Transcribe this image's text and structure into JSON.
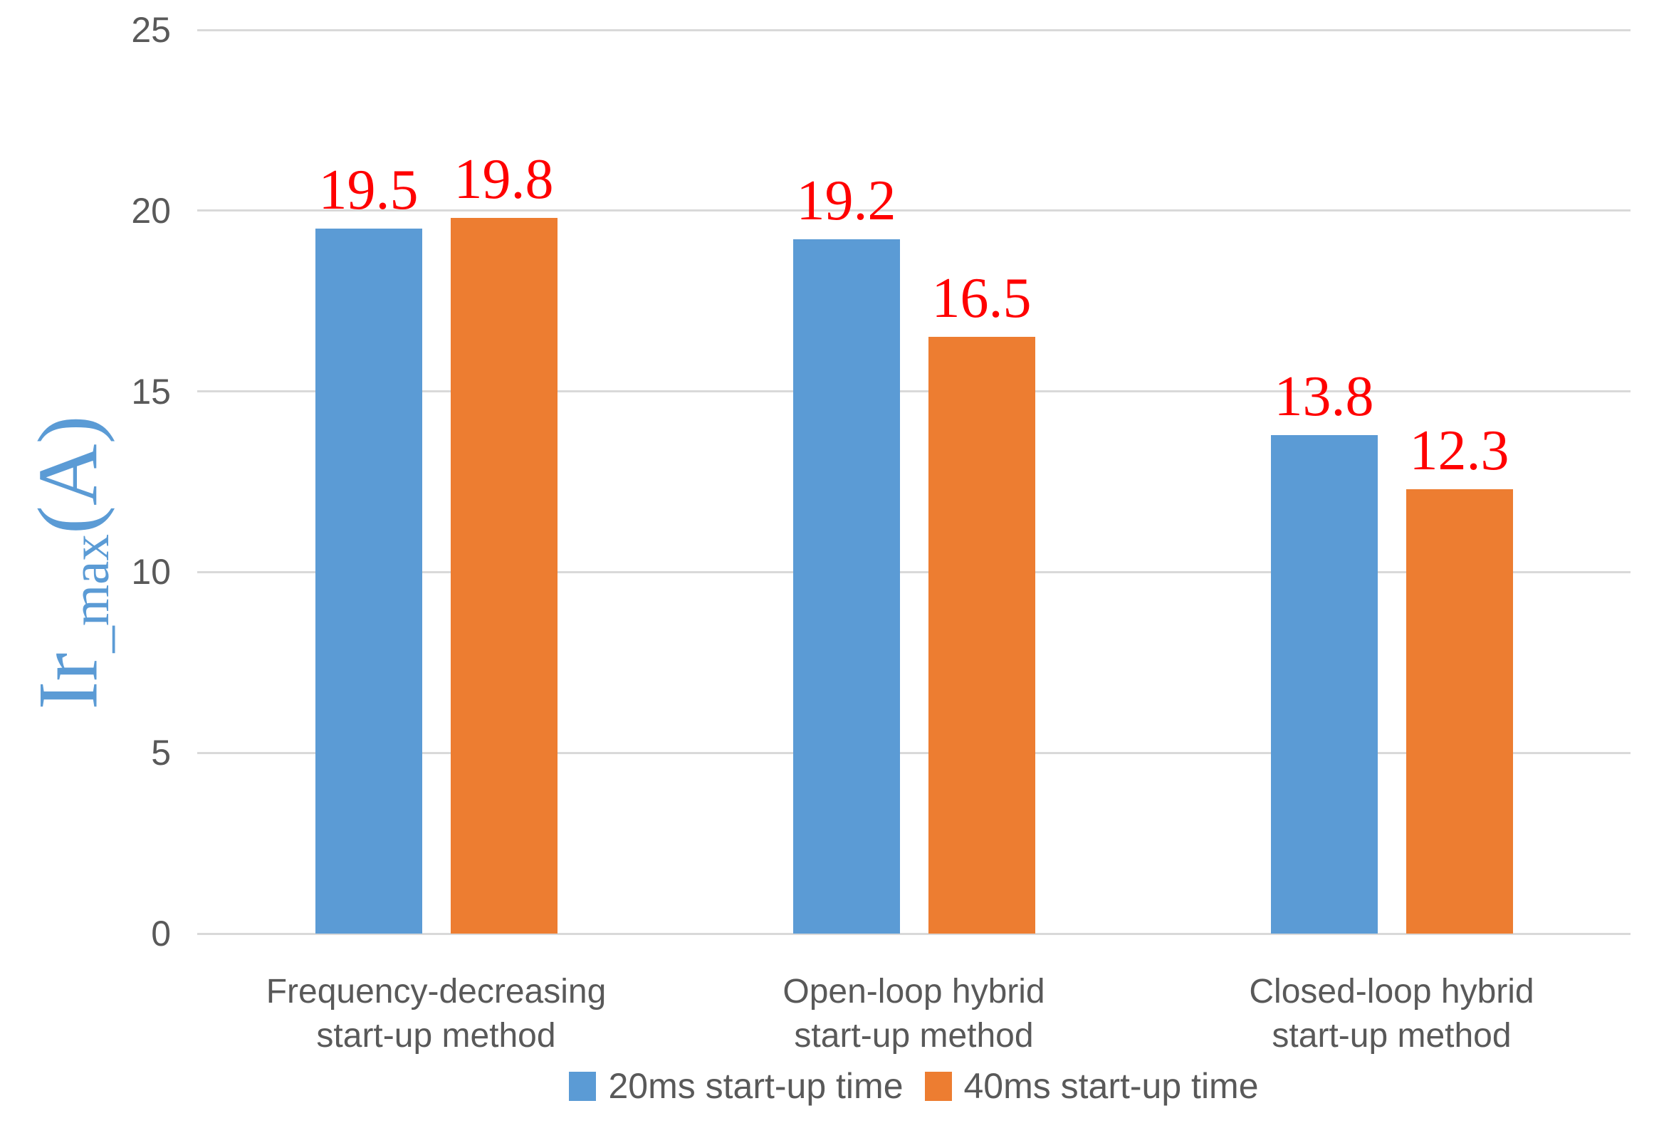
{
  "chart_data": {
    "type": "bar",
    "title": "",
    "categories": [
      "Frequency-decreasing\nstart-up method",
      "Open-loop hybrid\nstart-up method",
      "Closed-loop hybrid\nstart-up method"
    ],
    "series": [
      {
        "name": "20ms start-up time",
        "color": "#5B9BD5",
        "values": [
          19.5,
          19.2,
          13.8
        ]
      },
      {
        "name": "40ms start-up time",
        "color": "#ED7D31",
        "values": [
          19.8,
          16.5,
          12.3
        ]
      }
    ],
    "data_labels": [
      [
        "19.5",
        "19.2",
        "13.8"
      ],
      [
        "19.8",
        "16.5",
        "12.3"
      ]
    ],
    "ylabel": "Ir_max(A)",
    "ylabel_parts": {
      "pre": "Ir",
      "sub": "_max",
      "post": "(A)"
    },
    "xlabel": "",
    "ylim": [
      0,
      25
    ],
    "yticks": [
      "0",
      "5",
      "10",
      "15",
      "20",
      "25"
    ],
    "grid": true,
    "legend_position": "bottom",
    "colors": {
      "data_label": "#FF0000",
      "axis_text": "#595959",
      "gridline": "#D9D9D9",
      "ylabel_text": "#5B9BD5",
      "background": "#FFFFFF"
    }
  }
}
